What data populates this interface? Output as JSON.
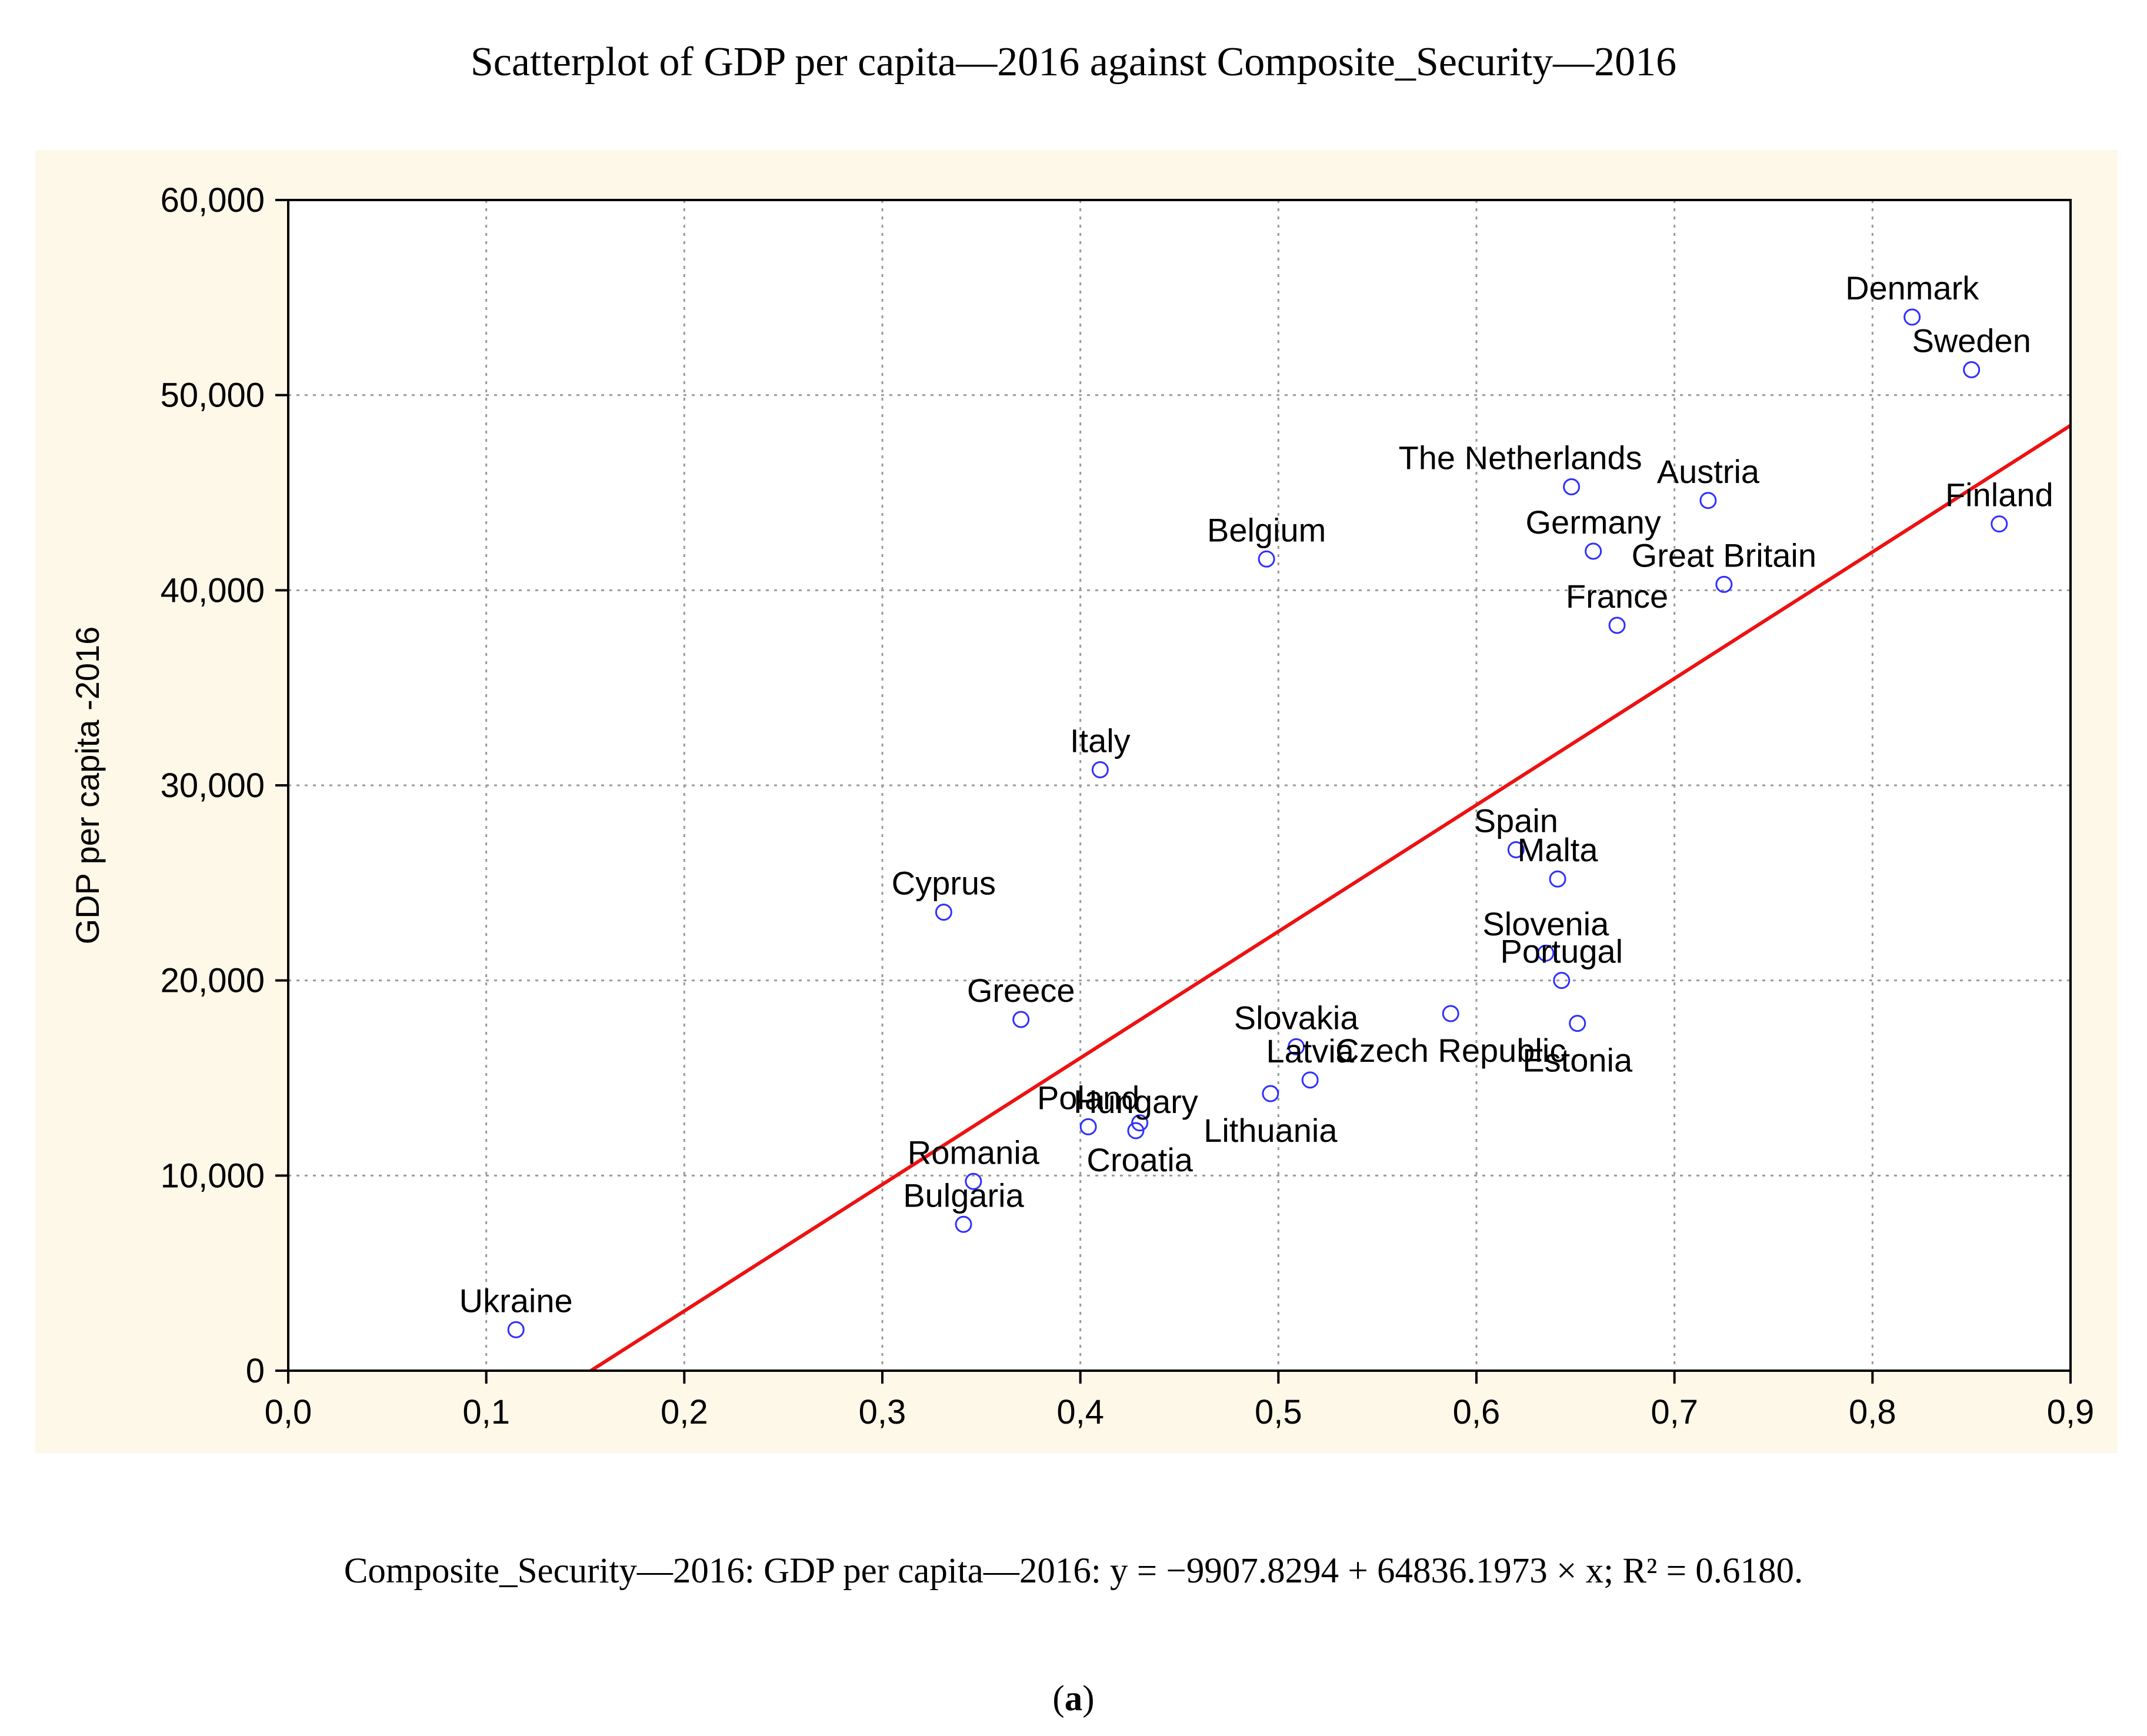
{
  "title": "Scatterplot of GDP per capita—2016 against Composite_Security—2016",
  "caption": "Composite_Security—2016: GDP per capita—2016: y = −9907.8294 + 64836.1973 × x; R² = 0.6180.",
  "panel": {
    "prefix": "(",
    "letter": "a",
    "suffix": ")"
  },
  "colors": {
    "plot_background": "#fdf8e8",
    "marker": "#2f2fff",
    "fit_line": "#ee1111",
    "grid": "#9a9a9a"
  },
  "chart_data": {
    "type": "scatter",
    "title": "Scatterplot of GDP per capita—2016 against Composite_Security—2016",
    "xlabel": "",
    "ylabel": "GDP per capita -2016",
    "xlim": [
      0.0,
      0.9
    ],
    "ylim": [
      0,
      60000
    ],
    "grid": true,
    "x_ticks": [
      0.0,
      0.1,
      0.2,
      0.3,
      0.4,
      0.5,
      0.6,
      0.7,
      0.8,
      0.9
    ],
    "x_tick_labels": [
      "0,0",
      "0,1",
      "0,2",
      "0,3",
      "0,4",
      "0,5",
      "0,6",
      "0,7",
      "0,8",
      "0,9"
    ],
    "y_ticks": [
      0,
      10000,
      20000,
      30000,
      40000,
      50000,
      60000
    ],
    "y_tick_labels": [
      "0",
      "10,000",
      "20,000",
      "30,000",
      "40,000",
      "50,000",
      "60,000"
    ],
    "fit": {
      "intercept": -9907.8294,
      "slope": 64836.1973,
      "r2": 0.618
    },
    "points": [
      {
        "label": "Denmark",
        "x": 0.82,
        "y": 54000,
        "anchor": "above"
      },
      {
        "label": "Sweden",
        "x": 0.85,
        "y": 51300,
        "anchor": "above"
      },
      {
        "label": "The Netherlands",
        "x": 0.648,
        "y": 45300,
        "anchor": "above-left"
      },
      {
        "label": "Austria",
        "x": 0.717,
        "y": 44600,
        "anchor": "above"
      },
      {
        "label": "Finland",
        "x": 0.864,
        "y": 43400,
        "anchor": "above"
      },
      {
        "label": "Belgium",
        "x": 0.494,
        "y": 41600,
        "anchor": "above"
      },
      {
        "label": "Germany",
        "x": 0.659,
        "y": 42000,
        "anchor": "above"
      },
      {
        "label": "Great Britain",
        "x": 0.725,
        "y": 40300,
        "anchor": "above"
      },
      {
        "label": "France",
        "x": 0.671,
        "y": 38200,
        "anchor": "above"
      },
      {
        "label": "Italy",
        "x": 0.41,
        "y": 30800,
        "anchor": "above"
      },
      {
        "label": "Spain",
        "x": 0.62,
        "y": 26700,
        "anchor": "above"
      },
      {
        "label": "Malta",
        "x": 0.641,
        "y": 25200,
        "anchor": "above"
      },
      {
        "label": "Cyprus",
        "x": 0.331,
        "y": 23500,
        "anchor": "above"
      },
      {
        "label": "Slovenia",
        "x": 0.635,
        "y": 21400,
        "anchor": "above"
      },
      {
        "label": "Portugal",
        "x": 0.643,
        "y": 20000,
        "anchor": "above"
      },
      {
        "label": "Greece",
        "x": 0.37,
        "y": 18000,
        "anchor": "above"
      },
      {
        "label": "Slovakia",
        "x": 0.509,
        "y": 16600,
        "anchor": "above"
      },
      {
        "label": "Czech Republic",
        "x": 0.587,
        "y": 18300,
        "anchor": "below"
      },
      {
        "label": "Estonia",
        "x": 0.651,
        "y": 17800,
        "anchor": "below"
      },
      {
        "label": "Hungary",
        "x": 0.428,
        "y": 12300,
        "anchor": "above"
      },
      {
        "label": "Latvia",
        "x": 0.516,
        "y": 14900,
        "anchor": "above"
      },
      {
        "label": "Lithuania",
        "x": 0.496,
        "y": 14200,
        "anchor": "below"
      },
      {
        "label": "Poland",
        "x": 0.404,
        "y": 12500,
        "anchor": "above"
      },
      {
        "label": "Croatia",
        "x": 0.43,
        "y": 12700,
        "anchor": "below"
      },
      {
        "label": "Romania",
        "x": 0.346,
        "y": 9700,
        "anchor": "above"
      },
      {
        "label": "Bulgaria",
        "x": 0.341,
        "y": 7500,
        "anchor": "above"
      },
      {
        "label": "Ukraine",
        "x": 0.115,
        "y": 2100,
        "anchor": "above"
      }
    ]
  }
}
